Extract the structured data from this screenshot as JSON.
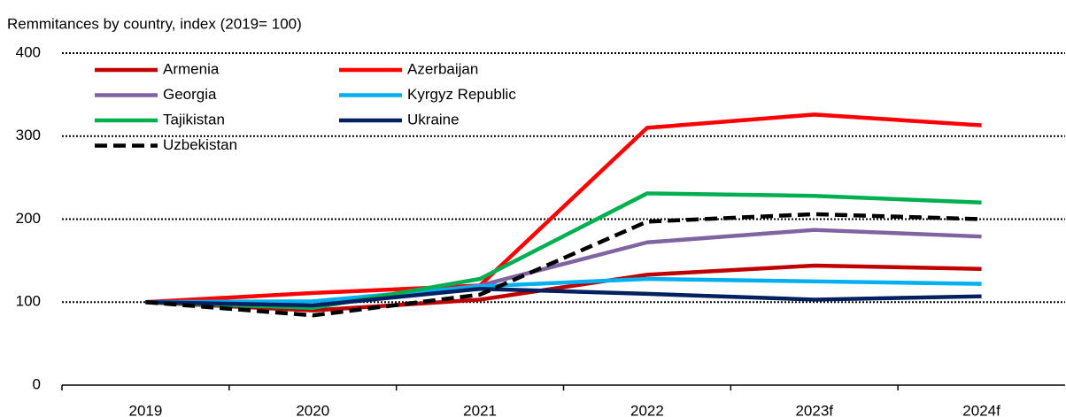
{
  "chart_data": {
    "type": "line",
    "title": "Remmitances by country, index (2019= 100)",
    "categories": [
      "2019",
      "2020",
      "2021",
      "2022",
      "2023f",
      "2024f"
    ],
    "series": [
      {
        "name": "Armenia",
        "color": "#c00000",
        "values": [
          100,
          90,
          103,
          133,
          144,
          140
        ]
      },
      {
        "name": "Azerbaijan",
        "color": "#ff0000",
        "values": [
          100,
          111,
          120,
          310,
          326,
          313
        ]
      },
      {
        "name": "Georgia",
        "color": "#8064a2",
        "values": [
          100,
          95,
          120,
          172,
          187,
          179
        ]
      },
      {
        "name": "Kyrgyz Republic",
        "color": "#00b0f0",
        "values": [
          100,
          101,
          119,
          128,
          125,
          122
        ]
      },
      {
        "name": "Tajikistan",
        "color": "#00b050",
        "values": [
          100,
          93,
          128,
          231,
          228,
          220
        ]
      },
      {
        "name": "Ukraine",
        "color": "#002060",
        "values": [
          100,
          96,
          116,
          110,
          103,
          107
        ]
      },
      {
        "name": "Uzbekistan",
        "color": "#000000",
        "dashed": true,
        "values": [
          100,
          84,
          109,
          197,
          206,
          200
        ]
      }
    ],
    "ylim": [
      0,
      400
    ],
    "yticks": [
      0,
      100,
      200,
      300,
      400
    ],
    "grid": true,
    "legend": "top-left"
  }
}
